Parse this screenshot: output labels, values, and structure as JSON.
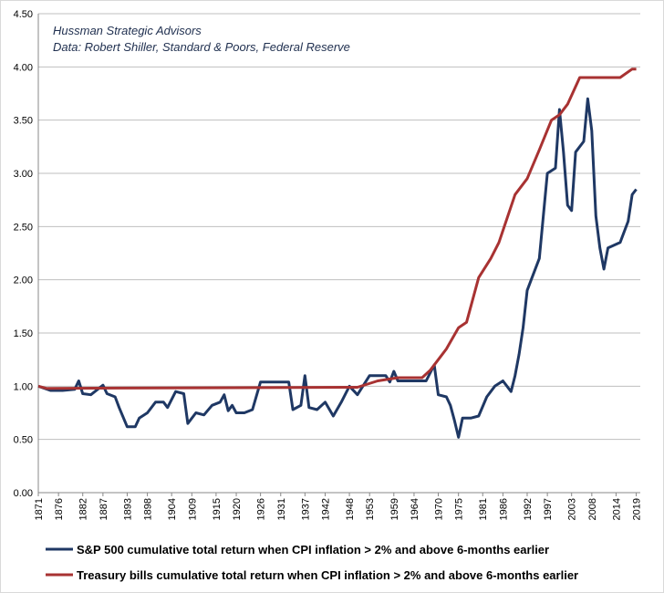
{
  "chart_data": {
    "type": "line",
    "annotations": [
      "Hussman Strategic Advisors",
      "Data: Robert Shiller, Standard & Poors, Federal Reserve"
    ],
    "xlim": [
      1871,
      2020
    ],
    "xticks": [
      1871,
      1876,
      1882,
      1887,
      1893,
      1898,
      1904,
      1909,
      1915,
      1920,
      1926,
      1931,
      1937,
      1942,
      1948,
      1953,
      1959,
      1964,
      1970,
      1975,
      1981,
      1986,
      1992,
      1997,
      2003,
      2008,
      2014,
      2019
    ],
    "ylim": [
      0,
      4.5
    ],
    "yticks": [
      {
        "value": 0,
        "label": "0.00"
      },
      {
        "value": 0.5,
        "label": "0.50"
      },
      {
        "value": 1,
        "label": "1.00"
      },
      {
        "value": 1.5,
        "label": "1.50"
      },
      {
        "value": 2,
        "label": "2.00"
      },
      {
        "value": 2.5,
        "label": "2.50"
      },
      {
        "value": 3,
        "label": "3.00"
      },
      {
        "value": 3.5,
        "label": "3.50"
      },
      {
        "value": 4,
        "label": "4.00"
      },
      {
        "value": 4.5,
        "label": "4.50"
      }
    ],
    "grid": true,
    "series": [
      {
        "name": "S&P 500 cumulative total return when CPI inflation > 2% and above 6-months earlier",
        "color": "#1f3864",
        "x": [
          1871,
          1874,
          1877,
          1880,
          1881,
          1882,
          1884,
          1887,
          1888,
          1890,
          1891,
          1893,
          1895,
          1896,
          1898,
          1900,
          1902,
          1903,
          1905,
          1907,
          1908,
          1910,
          1912,
          1914,
          1916,
          1917,
          1918,
          1919,
          1920,
          1922,
          1924,
          1926,
          1930,
          1933,
          1934,
          1936,
          1937,
          1938,
          1940,
          1942,
          1944,
          1946,
          1948,
          1950,
          1953,
          1957,
          1958,
          1959,
          1960,
          1964,
          1967,
          1969,
          1970,
          1972,
          1973,
          1974,
          1975,
          1976,
          1978,
          1980,
          1982,
          1984,
          1986,
          1988,
          1989,
          1990,
          1991,
          1992,
          1993,
          1995,
          1996,
          1997,
          1999,
          2000,
          2001,
          2002,
          2003,
          2004,
          2006,
          2007,
          2008,
          2009,
          2010,
          2011,
          2012,
          2015,
          2017,
          2018,
          2019
        ],
        "values": [
          1.0,
          0.96,
          0.96,
          0.97,
          1.05,
          0.93,
          0.92,
          1.01,
          0.93,
          0.9,
          0.8,
          0.62,
          0.62,
          0.7,
          0.75,
          0.85,
          0.85,
          0.8,
          0.95,
          0.93,
          0.65,
          0.75,
          0.73,
          0.82,
          0.85,
          0.92,
          0.77,
          0.82,
          0.75,
          0.75,
          0.78,
          1.04,
          1.04,
          1.04,
          0.78,
          0.82,
          1.1,
          0.8,
          0.78,
          0.85,
          0.72,
          0.85,
          1.0,
          0.92,
          1.1,
          1.1,
          1.04,
          1.14,
          1.05,
          1.05,
          1.05,
          1.2,
          0.92,
          0.9,
          0.82,
          0.68,
          0.52,
          0.7,
          0.7,
          0.72,
          0.9,
          1.0,
          1.05,
          0.95,
          1.1,
          1.3,
          1.55,
          1.9,
          2.0,
          2.2,
          2.6,
          3.0,
          3.05,
          3.6,
          3.2,
          2.7,
          2.65,
          3.2,
          3.3,
          3.7,
          3.4,
          2.6,
          2.3,
          2.1,
          2.3,
          2.35,
          2.55,
          2.8,
          2.85
        ]
      },
      {
        "name": "Treasury bills cumulative total return when CPI inflation > 2% and above 6-months earlier",
        "color": "#a83232",
        "x": [
          1871,
          1873,
          1950,
          1955,
          1960,
          1966,
          1968,
          1971,
          1972,
          1975,
          1977,
          1980,
          1983,
          1985,
          1989,
          1992,
          1995,
          1998,
          2000,
          2002,
          2005,
          2015,
          2018,
          2019
        ],
        "values": [
          1.0,
          0.98,
          0.99,
          1.05,
          1.08,
          1.08,
          1.15,
          1.3,
          1.35,
          1.55,
          1.6,
          2.02,
          2.2,
          2.35,
          2.8,
          2.95,
          3.22,
          3.5,
          3.55,
          3.65,
          3.9,
          3.9,
          3.98,
          3.98
        ]
      }
    ]
  }
}
